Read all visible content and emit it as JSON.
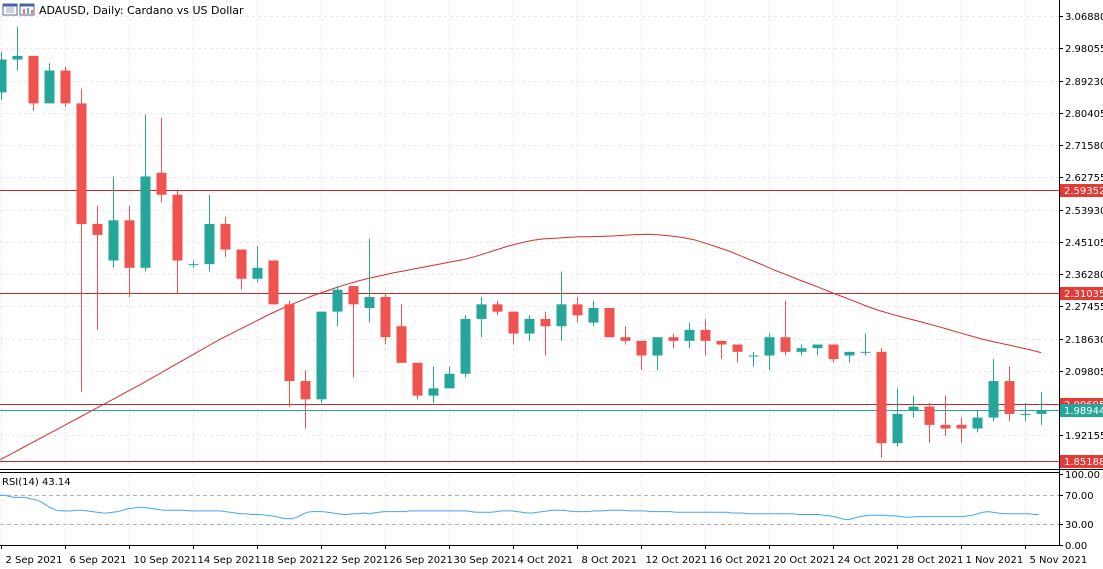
{
  "header": {
    "title": "ADAUSD, Daily:  Cardano vs US Dollar"
  },
  "colors": {
    "bull": "#26a69a",
    "bear": "#ef5350",
    "ma": "#d32f2f",
    "level_line": "#c62828",
    "level_badge": "#e53935",
    "current_line": "#26a69a",
    "current_badge": "#26a69a",
    "grid": "#e8e8e8",
    "rsi_line": "#42a5f5",
    "rsi_level": "#b0b0b0"
  },
  "chart_data": [
    {
      "type": "candlestick",
      "symbol": "ADAUSD",
      "timeframe": "Daily",
      "ylim": [
        1.832,
        3.113
      ],
      "y_ticks": [
        "3.06880",
        "2.98055",
        "2.89230",
        "2.80405",
        "2.71580",
        "2.62755",
        "2.53930",
        "2.45105",
        "2.36280",
        "2.27455",
        "2.18630",
        "2.09805",
        "1.92155"
      ],
      "x_ticks": [
        "2 Sep 2021",
        "6 Sep 2021",
        "10 Sep 2021",
        "14 Sep 2021",
        "18 Sep 2021",
        "22 Sep 2021",
        "26 Sep 2021",
        "30 Sep 2021",
        "4 Oct 2021",
        "8 Oct 2021",
        "12 Oct 2021",
        "16 Oct 2021",
        "20 Oct 2021",
        "24 Oct 2021",
        "28 Oct 2021",
        "1 Nov 2021",
        "5 Nov 2021"
      ],
      "candles": [
        {
          "o": 2.86,
          "h": 2.97,
          "l": 2.84,
          "c": 2.95
        },
        {
          "o": 2.95,
          "h": 3.04,
          "l": 2.92,
          "c": 2.96
        },
        {
          "o": 2.96,
          "h": 2.96,
          "l": 2.81,
          "c": 2.83
        },
        {
          "o": 2.83,
          "h": 2.94,
          "l": 2.83,
          "c": 2.92
        },
        {
          "o": 2.92,
          "h": 2.93,
          "l": 2.82,
          "c": 2.83
        },
        {
          "o": 2.83,
          "h": 2.87,
          "l": 2.04,
          "c": 2.5
        },
        {
          "o": 2.5,
          "h": 2.55,
          "l": 2.21,
          "c": 2.47
        },
        {
          "o": 2.4,
          "h": 2.63,
          "l": 2.38,
          "c": 2.51
        },
        {
          "o": 2.51,
          "h": 2.55,
          "l": 2.3,
          "c": 2.38
        },
        {
          "o": 2.38,
          "h": 2.8,
          "l": 2.37,
          "c": 2.63
        },
        {
          "o": 2.64,
          "h": 2.79,
          "l": 2.56,
          "c": 2.58
        },
        {
          "o": 2.58,
          "h": 2.59,
          "l": 2.31,
          "c": 2.4
        },
        {
          "o": 2.39,
          "h": 2.4,
          "l": 2.38,
          "c": 2.39
        },
        {
          "o": 2.39,
          "h": 2.58,
          "l": 2.37,
          "c": 2.5
        },
        {
          "o": 2.5,
          "h": 2.52,
          "l": 2.41,
          "c": 2.43
        },
        {
          "o": 2.43,
          "h": 2.43,
          "l": 2.32,
          "c": 2.35
        },
        {
          "o": 2.35,
          "h": 2.44,
          "l": 2.34,
          "c": 2.38
        },
        {
          "o": 2.4,
          "h": 2.4,
          "l": 2.28,
          "c": 2.28
        },
        {
          "o": 2.28,
          "h": 2.29,
          "l": 2.0,
          "c": 2.07
        },
        {
          "o": 2.07,
          "h": 2.1,
          "l": 1.94,
          "c": 2.02
        },
        {
          "o": 2.02,
          "h": 2.26,
          "l": 2.01,
          "c": 2.26
        },
        {
          "o": 2.26,
          "h": 2.33,
          "l": 2.22,
          "c": 2.32
        },
        {
          "o": 2.33,
          "h": 2.33,
          "l": 2.08,
          "c": 2.28
        },
        {
          "o": 2.27,
          "h": 2.46,
          "l": 2.23,
          "c": 2.3
        },
        {
          "o": 2.3,
          "h": 2.31,
          "l": 2.17,
          "c": 2.19
        },
        {
          "o": 2.22,
          "h": 2.28,
          "l": 2.12,
          "c": 2.12
        },
        {
          "o": 2.12,
          "h": 2.12,
          "l": 2.02,
          "c": 2.03
        },
        {
          "o": 2.03,
          "h": 2.11,
          "l": 2.01,
          "c": 2.05
        },
        {
          "o": 2.05,
          "h": 2.11,
          "l": 2.05,
          "c": 2.09
        },
        {
          "o": 2.09,
          "h": 2.25,
          "l": 2.08,
          "c": 2.24
        },
        {
          "o": 2.24,
          "h": 2.3,
          "l": 2.19,
          "c": 2.28
        },
        {
          "o": 2.28,
          "h": 2.29,
          "l": 2.25,
          "c": 2.26
        },
        {
          "o": 2.26,
          "h": 2.26,
          "l": 2.17,
          "c": 2.2
        },
        {
          "o": 2.2,
          "h": 2.25,
          "l": 2.18,
          "c": 2.24
        },
        {
          "o": 2.24,
          "h": 2.26,
          "l": 2.14,
          "c": 2.22
        },
        {
          "o": 2.22,
          "h": 2.37,
          "l": 2.18,
          "c": 2.28
        },
        {
          "o": 2.28,
          "h": 2.3,
          "l": 2.23,
          "c": 2.25
        },
        {
          "o": 2.23,
          "h": 2.29,
          "l": 2.22,
          "c": 2.27
        },
        {
          "o": 2.27,
          "h": 2.27,
          "l": 2.19,
          "c": 2.19
        },
        {
          "o": 2.19,
          "h": 2.22,
          "l": 2.17,
          "c": 2.18
        },
        {
          "o": 2.18,
          "h": 2.18,
          "l": 2.1,
          "c": 2.14
        },
        {
          "o": 2.14,
          "h": 2.19,
          "l": 2.1,
          "c": 2.19
        },
        {
          "o": 2.19,
          "h": 2.2,
          "l": 2.16,
          "c": 2.18
        },
        {
          "o": 2.18,
          "h": 2.23,
          "l": 2.16,
          "c": 2.21
        },
        {
          "o": 2.21,
          "h": 2.24,
          "l": 2.14,
          "c": 2.18
        },
        {
          "o": 2.18,
          "h": 2.18,
          "l": 2.13,
          "c": 2.17
        },
        {
          "o": 2.17,
          "h": 2.17,
          "l": 2.12,
          "c": 2.15
        },
        {
          "o": 2.14,
          "h": 2.15,
          "l": 2.11,
          "c": 2.14
        },
        {
          "o": 2.14,
          "h": 2.2,
          "l": 2.1,
          "c": 2.19
        },
        {
          "o": 2.19,
          "h": 2.29,
          "l": 2.14,
          "c": 2.15
        },
        {
          "o": 2.15,
          "h": 2.17,
          "l": 2.14,
          "c": 2.16
        },
        {
          "o": 2.16,
          "h": 2.17,
          "l": 2.14,
          "c": 2.17
        },
        {
          "o": 2.17,
          "h": 2.17,
          "l": 2.12,
          "c": 2.13
        },
        {
          "o": 2.14,
          "h": 2.15,
          "l": 2.12,
          "c": 2.15
        },
        {
          "o": 2.15,
          "h": 2.2,
          "l": 2.14,
          "c": 2.15
        },
        {
          "o": 2.15,
          "h": 2.16,
          "l": 1.86,
          "c": 1.9
        },
        {
          "o": 1.9,
          "h": 2.05,
          "l": 1.89,
          "c": 1.98
        },
        {
          "o": 1.99,
          "h": 2.03,
          "l": 1.97,
          "c": 2.0
        },
        {
          "o": 2.0,
          "h": 2.01,
          "l": 1.9,
          "c": 1.95
        },
        {
          "o": 1.95,
          "h": 2.03,
          "l": 1.92,
          "c": 1.94
        },
        {
          "o": 1.95,
          "h": 1.97,
          "l": 1.9,
          "c": 1.94
        },
        {
          "o": 1.94,
          "h": 1.99,
          "l": 1.93,
          "c": 1.97
        },
        {
          "o": 1.97,
          "h": 2.13,
          "l": 1.96,
          "c": 2.07
        },
        {
          "o": 2.07,
          "h": 2.11,
          "l": 1.96,
          "c": 1.98
        },
        {
          "o": 1.98,
          "h": 2.01,
          "l": 1.96,
          "c": 1.98
        },
        {
          "o": 1.98,
          "h": 2.04,
          "l": 1.95,
          "c": 1.99
        }
      ],
      "ma_line": [
        1.855,
        1.871,
        1.888,
        1.905,
        1.922,
        1.939,
        1.956,
        1.973,
        1.99,
        2.007,
        2.024,
        2.041,
        2.058,
        2.076,
        2.094,
        2.112,
        2.13,
        2.148,
        2.166,
        2.184,
        2.2,
        2.216,
        2.232,
        2.248,
        2.263,
        2.277,
        2.29,
        2.303,
        2.314,
        2.325,
        2.335,
        2.344,
        2.352,
        2.359,
        2.366,
        2.372,
        2.378,
        2.384,
        2.39,
        2.396,
        2.402,
        2.41,
        2.42,
        2.43,
        2.44,
        2.448,
        2.455,
        2.459,
        2.461,
        2.463,
        2.465,
        2.465,
        2.466,
        2.467,
        2.469,
        2.471,
        2.472,
        2.47,
        2.467,
        2.463,
        2.457,
        2.447,
        2.437,
        2.426,
        2.413,
        2.4,
        2.387,
        2.373,
        2.361,
        2.348,
        2.336,
        2.324,
        2.311,
        2.299,
        2.287,
        2.274,
        2.263,
        2.254,
        2.245,
        2.237,
        2.229,
        2.22,
        2.211,
        2.202,
        2.193,
        2.184,
        2.177,
        2.17,
        2.163,
        2.156,
        2.148
      ],
      "levels": [
        2.59352,
        2.31035,
        2.00695,
        1.85188
      ],
      "level_labels": [
        "2.59352",
        "2.31035",
        "2.00695",
        "1.85188"
      ],
      "current_price": 1.98944,
      "current_price_label": "1.98944"
    },
    {
      "type": "line",
      "indicator": "RSI",
      "label": "RSI(14) 43.14",
      "ylim": [
        0,
        100
      ],
      "y_ticks": [
        "100.00",
        "70.00",
        "30.00",
        "0.00"
      ],
      "levels": [
        70,
        30
      ],
      "values": [
        70,
        70,
        68,
        67,
        67,
        67,
        65,
        64,
        61,
        56,
        52,
        49,
        48,
        48,
        48,
        49,
        49,
        48,
        47,
        46,
        45,
        45,
        46,
        47,
        49,
        51,
        52,
        53,
        53,
        52,
        51,
        50,
        49,
        49,
        49,
        49,
        49,
        48,
        48,
        48,
        48,
        48,
        48,
        48,
        47,
        46,
        45,
        44,
        44,
        43,
        43,
        43,
        42,
        41,
        40,
        38,
        37,
        37,
        39,
        43,
        46,
        47,
        47,
        47,
        46,
        45,
        44,
        43,
        43,
        44,
        44,
        45,
        44,
        45,
        46,
        47,
        47,
        47,
        47,
        47,
        48,
        48,
        48,
        48,
        48,
        48,
        48,
        48,
        48,
        48,
        48,
        48,
        47,
        46,
        46,
        46,
        46,
        47,
        48,
        48,
        48,
        47,
        46,
        45,
        45,
        46,
        47,
        48,
        49,
        49,
        49,
        48,
        47,
        47,
        47,
        47,
        48,
        48,
        48,
        49,
        49,
        49,
        49,
        48,
        48,
        48,
        48,
        47,
        47,
        47,
        47,
        47,
        46,
        46,
        46,
        46,
        46,
        46,
        46,
        46,
        46,
        46,
        46,
        45,
        45,
        45,
        44,
        44,
        44,
        44,
        44,
        44,
        44,
        44,
        44,
        44,
        43,
        43,
        43,
        43,
        43,
        42,
        41,
        40,
        38,
        36,
        36,
        38,
        40,
        41,
        42,
        42,
        42,
        42,
        41,
        41,
        40,
        39,
        39,
        40,
        40,
        40,
        40,
        40,
        40,
        40,
        40,
        40,
        40,
        41,
        42,
        44,
        46,
        47,
        46,
        45,
        44,
        44,
        44,
        44,
        44,
        44,
        43,
        43
      ]
    }
  ]
}
